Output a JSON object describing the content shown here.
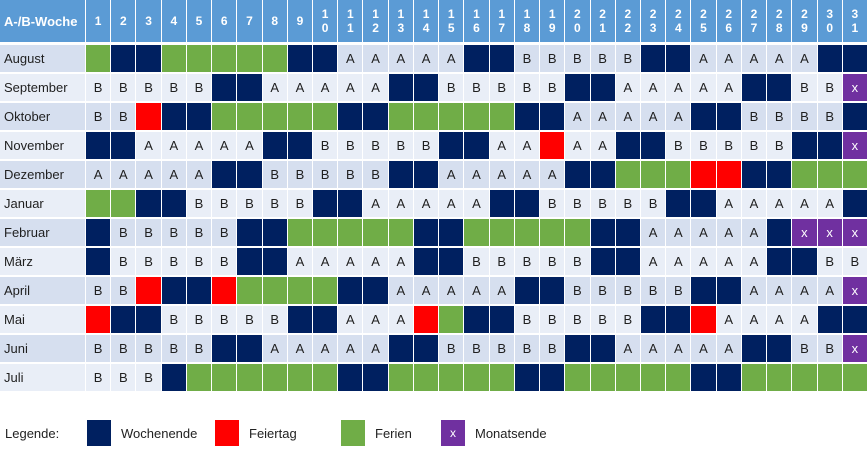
{
  "header": {
    "title": "A-/B-Woche",
    "days": [
      1,
      2,
      3,
      4,
      5,
      6,
      7,
      8,
      9,
      10,
      11,
      12,
      13,
      14,
      15,
      16,
      17,
      18,
      19,
      20,
      21,
      22,
      23,
      24,
      25,
      26,
      27,
      28,
      29,
      30,
      31
    ]
  },
  "rows": [
    {
      "month": "August",
      "cells": [
        "#70ad47",
        "#002060",
        "#002060",
        "#70ad47",
        "#70ad47",
        "#70ad47",
        "#70ad47",
        "#70ad47",
        "#002060",
        "#002060",
        "A",
        "A",
        "A",
        "A",
        "A",
        "#002060",
        "#002060",
        "B",
        "B",
        "B",
        "B",
        "B",
        "#002060",
        "#002060",
        "A",
        "A",
        "A",
        "A",
        "A",
        "#002060",
        "#002060"
      ]
    },
    {
      "month": "September",
      "cells": [
        "B",
        "B",
        "B",
        "B",
        "B",
        "#002060",
        "#002060",
        "A",
        "A",
        "A",
        "A",
        "A",
        "#002060",
        "#002060",
        "B",
        "B",
        "B",
        "B",
        "B",
        "#002060",
        "#002060",
        "A",
        "A",
        "A",
        "A",
        "A",
        "#002060",
        "#002060",
        "B",
        "B",
        "x"
      ]
    },
    {
      "month": "Oktober",
      "cells": [
        "B",
        "B",
        "#ff0000",
        "#002060",
        "#002060",
        "#70ad47",
        "#70ad47",
        "#70ad47",
        "#70ad47",
        "#70ad47",
        "#002060",
        "#002060",
        "#70ad47",
        "#70ad47",
        "#70ad47",
        "#70ad47",
        "#70ad47",
        "#002060",
        "#002060",
        "A",
        "A",
        "A",
        "A",
        "A",
        "#002060",
        "#002060",
        "B",
        "B",
        "B",
        "B",
        "#002060"
      ]
    },
    {
      "month": "November",
      "cells": [
        "#002060",
        "#002060",
        "A",
        "A",
        "A",
        "A",
        "A",
        "#002060",
        "#002060",
        "B",
        "B",
        "B",
        "B",
        "B",
        "#002060",
        "#002060",
        "A",
        "A",
        "#ff0000",
        "A",
        "A",
        "#002060",
        "#002060",
        "B",
        "B",
        "B",
        "B",
        "B",
        "#002060",
        "#002060",
        "x"
      ]
    },
    {
      "month": "Dezember",
      "cells": [
        "A",
        "A",
        "A",
        "A",
        "A",
        "#002060",
        "#002060",
        "B",
        "B",
        "B",
        "B",
        "B",
        "#002060",
        "#002060",
        "A",
        "A",
        "A",
        "A",
        "A",
        "#002060",
        "#002060",
        "#70ad47",
        "#70ad47",
        "#70ad47",
        "#ff0000",
        "#ff0000",
        "#002060",
        "#002060",
        "#70ad47",
        "#70ad47",
        "#70ad47"
      ]
    },
    {
      "month": "Januar",
      "cells": [
        "#70ad47",
        "#70ad47",
        "#002060",
        "#002060",
        "B",
        "B",
        "B",
        "B",
        "B",
        "#002060",
        "#002060",
        "A",
        "A",
        "A",
        "A",
        "A",
        "#002060",
        "#002060",
        "B",
        "B",
        "B",
        "B",
        "B",
        "#002060",
        "#002060",
        "A",
        "A",
        "A",
        "A",
        "A",
        "#002060"
      ]
    },
    {
      "month": "Februar",
      "cells": [
        "#002060",
        "B",
        "B",
        "B",
        "B",
        "B",
        "#002060",
        "#002060",
        "#70ad47",
        "#70ad47",
        "#70ad47",
        "#70ad47",
        "#70ad47",
        "#002060",
        "#002060",
        "#70ad47",
        "#70ad47",
        "#70ad47",
        "#70ad47",
        "#70ad47",
        "#002060",
        "#002060",
        "A",
        "A",
        "A",
        "A",
        "A",
        "#002060",
        "x",
        "x",
        "x"
      ]
    },
    {
      "month": "März",
      "cells": [
        "#002060",
        "B",
        "B",
        "B",
        "B",
        "B",
        "#002060",
        "#002060",
        "A",
        "A",
        "A",
        "A",
        "A",
        "#002060",
        "#002060",
        "B",
        "B",
        "B",
        "B",
        "B",
        "#002060",
        "#002060",
        "A",
        "A",
        "A",
        "A",
        "A",
        "#002060",
        "#002060",
        "B",
        "B"
      ]
    },
    {
      "month": "April",
      "cells": [
        "B",
        "B",
        "#ff0000",
        "#002060",
        "#002060",
        "#ff0000",
        "#70ad47",
        "#70ad47",
        "#70ad47",
        "#70ad47",
        "#002060",
        "#002060",
        "A",
        "A",
        "A",
        "A",
        "A",
        "#002060",
        "#002060",
        "B",
        "B",
        "B",
        "B",
        "B",
        "#002060",
        "#002060",
        "A",
        "A",
        "A",
        "A",
        "x"
      ]
    },
    {
      "month": "Mai",
      "cells": [
        "#ff0000",
        "#002060",
        "#002060",
        "B",
        "B",
        "B",
        "B",
        "B",
        "#002060",
        "#002060",
        "A",
        "A",
        "A",
        "#ff0000",
        "#70ad47",
        "#002060",
        "#002060",
        "B",
        "B",
        "B",
        "B",
        "B",
        "#002060",
        "#002060",
        "#ff0000",
        "A",
        "A",
        "A",
        "A",
        "#002060",
        "#002060"
      ]
    },
    {
      "month": "Juni",
      "cells": [
        "B",
        "B",
        "B",
        "B",
        "B",
        "#002060",
        "#002060",
        "A",
        "A",
        "A",
        "A",
        "A",
        "#002060",
        "#002060",
        "B",
        "B",
        "B",
        "B",
        "B",
        "#002060",
        "#002060",
        "A",
        "A",
        "A",
        "A",
        "A",
        "#002060",
        "#002060",
        "B",
        "B",
        "x"
      ]
    },
    {
      "month": "Juli",
      "cells": [
        "B",
        "B",
        "B",
        "#002060",
        "#70ad47",
        "#70ad47",
        "#70ad47",
        "#70ad47",
        "#70ad47",
        "#70ad47",
        "#002060",
        "#002060",
        "#70ad47",
        "#70ad47",
        "#70ad47",
        "#70ad47",
        "#70ad47",
        "#002060",
        "#002060",
        "#70ad47",
        "#70ad47",
        "#70ad47",
        "#70ad47",
        "#70ad47",
        "#002060",
        "#002060",
        "#70ad47",
        "#70ad47",
        "#70ad47",
        "#70ad47",
        "#70ad47"
      ]
    }
  ],
  "legend": {
    "title": "Legende:",
    "items": [
      {
        "label": "Wochenende",
        "color": "#002060"
      },
      {
        "label": "Feiertag",
        "color": "#ff0000"
      },
      {
        "label": "Ferien",
        "color": "#70ad47"
      },
      {
        "label": "Monatsende",
        "color": "#7030a0",
        "symbol": "x"
      }
    ]
  }
}
